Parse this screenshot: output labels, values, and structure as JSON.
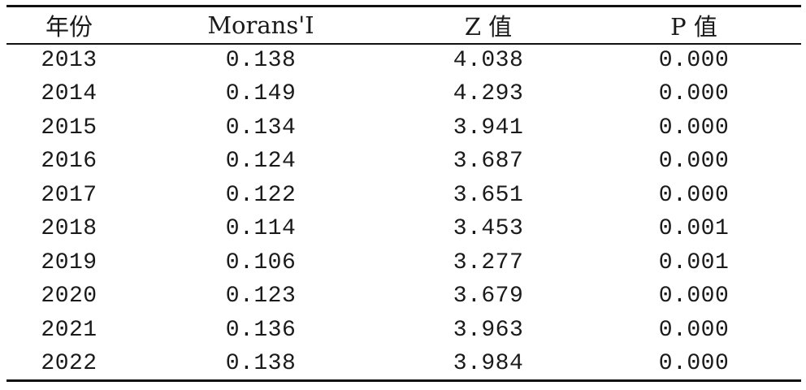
{
  "table": {
    "headers": [
      "年份",
      "Morans'I",
      "Z 值",
      "P 值"
    ],
    "rows": [
      [
        "2013",
        "0.138",
        "4.038",
        "0.000"
      ],
      [
        "2014",
        "0.149",
        "4.293",
        "0.000"
      ],
      [
        "2015",
        "0.134",
        "3.941",
        "0.000"
      ],
      [
        "2016",
        "0.124",
        "3.687",
        "0.000"
      ],
      [
        "2017",
        "0.122",
        "3.651",
        "0.000"
      ],
      [
        "2018",
        "0.114",
        "3.453",
        "0.001"
      ],
      [
        "2019",
        "0.106",
        "3.277",
        "0.001"
      ],
      [
        "2020",
        "0.123",
        "3.679",
        "0.000"
      ],
      [
        "2021",
        "0.136",
        "3.963",
        "0.000"
      ],
      [
        "2022",
        "0.138",
        "3.984",
        "0.000"
      ]
    ]
  }
}
